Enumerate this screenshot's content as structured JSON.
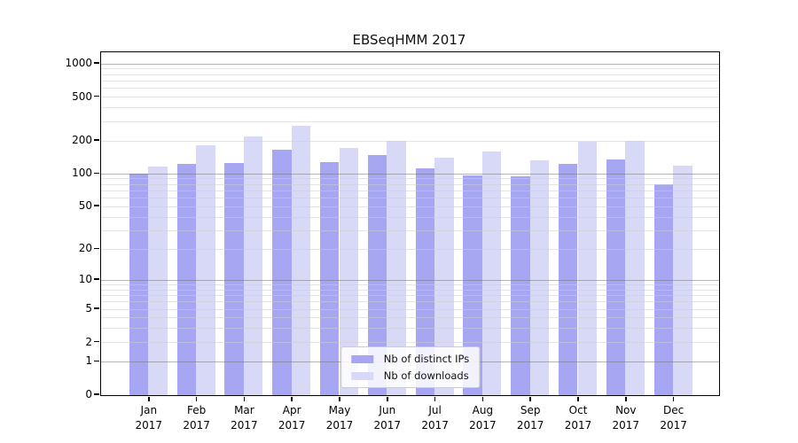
{
  "title": "EBSeqHMM 2017",
  "chart_data": {
    "type": "bar",
    "title": "EBSeqHMM 2017",
    "months": [
      "Jan",
      "Feb",
      "Mar",
      "Apr",
      "May",
      "Jun",
      "Jul",
      "Aug",
      "Sep",
      "Oct",
      "Nov",
      "Dec"
    ],
    "year": "2017",
    "categories": [
      "Jan 2017",
      "Feb 2017",
      "Mar 2017",
      "Apr 2017",
      "May 2017",
      "Jun 2017",
      "Jul 2017",
      "Aug 2017",
      "Sep 2017",
      "Oct 2017",
      "Nov 2017",
      "Dec 2017"
    ],
    "series": [
      {
        "name": "Nb of distinct IPs",
        "color": "#a6a6f2",
        "values": [
          100,
          123,
          126,
          166,
          128,
          148,
          112,
          96,
          95,
          124,
          135,
          80
        ]
      },
      {
        "name": "Nb of downloads",
        "color": "#d8d8f7",
        "values": [
          117,
          184,
          221,
          275,
          174,
          200,
          140,
          161,
          133,
          195,
          202,
          120
        ]
      }
    ],
    "yscale": "log1p",
    "yticks": [
      0,
      1,
      2,
      5,
      10,
      20,
      50,
      100,
      200,
      500,
      1000
    ],
    "ylim": [
      0,
      1300
    ],
    "grid": true,
    "grid_major_at": [
      1,
      10,
      100,
      1000
    ],
    "legend_position": "lower center"
  },
  "colors": {
    "bar_dark": "#a6a6f2",
    "bar_light": "#d8d8f7",
    "grid_major": "#787878",
    "grid_minor": "#cdcdcd",
    "spine": "#000000",
    "legend_border": "#cccccc",
    "legend_bg": "#ffffff"
  }
}
